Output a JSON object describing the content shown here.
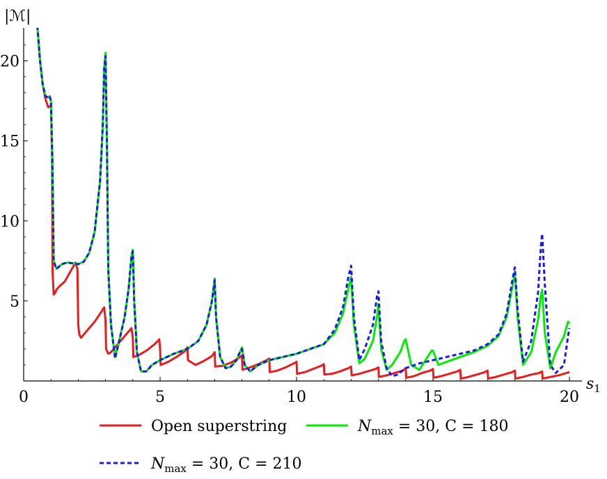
{
  "chart_data": {
    "type": "line",
    "title": "",
    "xlabel": "s",
    "xlabel_sub": "1",
    "ylabel": "|ℳ|",
    "xlim": [
      0,
      20
    ],
    "ylim": [
      0,
      22
    ],
    "xticks": [
      0,
      5,
      10,
      15,
      20
    ],
    "yticks": [
      5,
      10,
      15,
      20
    ],
    "grid": false,
    "legend_position": "bottom",
    "series": [
      {
        "name": "Open superstring",
        "color": "#e81c1c",
        "dash": "solid",
        "x": [
          0.5,
          0.6,
          0.7,
          0.8,
          0.9,
          1.0,
          1.04,
          1.06,
          1.1,
          1.15,
          1.2,
          1.3,
          1.5,
          1.7,
          1.9,
          1.97,
          2.0,
          2.04,
          2.1,
          2.2,
          2.4,
          2.6,
          2.8,
          2.95,
          3.0,
          3.02,
          3.1,
          3.2,
          3.4,
          3.6,
          3.8,
          3.95,
          4.0,
          4.02,
          4.2,
          4.5,
          4.8,
          4.97,
          5.0,
          5.02,
          5.3,
          5.6,
          5.9,
          6.0,
          6.02,
          6.3,
          6.6,
          6.9,
          7.0,
          7.02,
          7.3,
          7.6,
          7.9,
          8.0,
          8.02,
          8.3,
          8.6,
          8.9,
          9.0,
          9.02,
          9.3,
          9.6,
          9.9,
          10.0,
          10.02,
          10.3,
          10.6,
          10.9,
          11.0,
          11.02,
          11.3,
          11.6,
          11.9,
          12.0,
          12.02,
          12.3,
          12.6,
          12.9,
          13.0,
          13.02,
          13.3,
          13.6,
          13.9,
          14.0,
          14.02,
          14.3,
          14.6,
          14.9,
          15.0,
          15.02,
          15.3,
          15.6,
          15.9,
          16.0,
          16.02,
          16.3,
          16.6,
          16.9,
          17.0,
          17.02,
          17.3,
          17.6,
          17.9,
          18.0,
          18.02,
          18.3,
          18.6,
          18.9,
          19.0,
          19.02,
          19.3,
          19.6,
          19.9,
          20.0
        ],
        "y": [
          22.2,
          20.0,
          18.5,
          17.6,
          17.1,
          17.2,
          14.0,
          6.8,
          5.4,
          5.5,
          5.7,
          5.9,
          6.2,
          6.8,
          7.4,
          7.0,
          3.5,
          2.9,
          2.7,
          2.9,
          3.3,
          3.7,
          4.2,
          4.6,
          3.8,
          2.0,
          1.7,
          1.8,
          2.2,
          2.6,
          3.0,
          3.3,
          2.7,
          1.5,
          1.6,
          1.9,
          2.3,
          2.6,
          2.0,
          1.0,
          1.2,
          1.5,
          1.85,
          2.1,
          1.3,
          1.0,
          1.25,
          1.55,
          1.8,
          0.9,
          0.95,
          1.15,
          1.45,
          1.6,
          0.7,
          0.85,
          1.05,
          1.3,
          1.4,
          0.55,
          0.65,
          0.85,
          1.1,
          1.2,
          0.45,
          0.55,
          0.75,
          0.95,
          1.05,
          0.4,
          0.45,
          0.6,
          0.8,
          0.9,
          0.35,
          0.45,
          0.6,
          0.75,
          0.85,
          0.25,
          0.35,
          0.5,
          0.65,
          0.8,
          0.2,
          0.3,
          0.5,
          0.65,
          0.75,
          0.2,
          0.3,
          0.45,
          0.6,
          0.7,
          0.15,
          0.25,
          0.4,
          0.55,
          0.65,
          0.15,
          0.25,
          0.4,
          0.55,
          0.65,
          0.15,
          0.25,
          0.4,
          0.5,
          0.6,
          0.15,
          0.25,
          0.35,
          0.5,
          0.55
        ]
      },
      {
        "name": "N_max = 30, C = 180",
        "color": "#00ee00",
        "dash": "solid",
        "x": [
          0.5,
          0.6,
          0.7,
          0.8,
          0.9,
          0.95,
          1.0,
          1.05,
          1.1,
          1.2,
          1.4,
          1.6,
          1.8,
          2.0,
          2.2,
          2.4,
          2.6,
          2.8,
          2.9,
          2.95,
          3.0,
          3.05,
          3.1,
          3.2,
          3.35,
          3.5,
          3.7,
          3.85,
          3.95,
          4.0,
          4.05,
          4.15,
          4.3,
          4.5,
          4.7,
          5.0,
          5.5,
          6.0,
          6.4,
          6.7,
          6.9,
          7.0,
          7.05,
          7.2,
          7.4,
          7.6,
          7.8,
          7.95,
          8.0,
          8.1,
          8.3,
          8.6,
          9.0,
          9.5,
          10.0,
          10.5,
          11.0,
          11.4,
          11.7,
          11.9,
          12.0,
          12.1,
          12.3,
          12.5,
          12.8,
          12.95,
          13.0,
          13.1,
          13.3,
          13.5,
          13.8,
          13.95,
          14.0,
          14.2,
          14.5,
          14.8,
          14.95,
          15.0,
          15.2,
          15.5,
          16.0,
          16.5,
          17.0,
          17.4,
          17.7,
          17.9,
          18.0,
          18.1,
          18.3,
          18.6,
          18.85,
          18.95,
          19.0,
          19.1,
          19.3,
          19.5,
          19.8,
          19.95,
          20.0
        ],
        "y": [
          22.2,
          20.0,
          18.5,
          17.8,
          17.7,
          17.8,
          17.5,
          14.0,
          7.5,
          7.0,
          7.3,
          7.4,
          7.35,
          7.3,
          7.45,
          8.0,
          9.3,
          12.5,
          16.0,
          19.5,
          20.5,
          15.0,
          7.0,
          3.5,
          1.5,
          2.5,
          4.0,
          5.8,
          7.8,
          8.2,
          5.0,
          1.8,
          0.6,
          0.6,
          1.0,
          1.3,
          1.7,
          2.0,
          2.5,
          3.5,
          5.0,
          6.4,
          4.0,
          1.5,
          0.8,
          0.9,
          1.3,
          1.9,
          2.1,
          1.0,
          0.6,
          1.0,
          1.3,
          1.5,
          1.7,
          2.0,
          2.3,
          3.0,
          4.2,
          5.8,
          6.5,
          3.5,
          1.1,
          1.4,
          2.5,
          4.0,
          4.8,
          2.0,
          0.7,
          1.0,
          1.8,
          2.5,
          2.6,
          1.0,
          0.7,
          1.5,
          1.9,
          1.9,
          1.0,
          1.2,
          1.5,
          1.8,
          2.2,
          2.8,
          4.0,
          5.8,
          6.8,
          4.0,
          1.0,
          1.8,
          3.8,
          5.3,
          5.7,
          3.0,
          0.8,
          1.8,
          2.8,
          3.7,
          3.6
        ]
      },
      {
        "name": "N_max = 30, C = 210",
        "color": "#1a1ae6",
        "dash": "dashed",
        "x": [
          0.5,
          0.6,
          0.7,
          0.8,
          0.9,
          0.95,
          1.0,
          1.05,
          1.1,
          1.2,
          1.4,
          1.6,
          1.8,
          2.0,
          2.2,
          2.4,
          2.6,
          2.8,
          2.9,
          2.95,
          3.0,
          3.05,
          3.1,
          3.2,
          3.35,
          3.5,
          3.7,
          3.85,
          3.95,
          4.0,
          4.05,
          4.15,
          4.3,
          4.5,
          4.7,
          5.0,
          5.5,
          6.0,
          6.4,
          6.7,
          6.9,
          7.0,
          7.05,
          7.2,
          7.4,
          7.6,
          7.8,
          7.95,
          8.0,
          8.1,
          8.3,
          8.6,
          9.0,
          9.5,
          10.0,
          10.5,
          11.0,
          11.4,
          11.7,
          11.9,
          12.0,
          12.1,
          12.3,
          12.5,
          12.8,
          12.95,
          13.0,
          13.1,
          13.3,
          13.5,
          13.7,
          14.0,
          14.5,
          15.0,
          15.5,
          16.0,
          16.5,
          17.0,
          17.4,
          17.7,
          17.9,
          18.0,
          18.1,
          18.3,
          18.6,
          18.85,
          18.95,
          19.0,
          19.1,
          19.3,
          19.5,
          19.8,
          19.95,
          20.0
        ],
        "y": [
          22.2,
          20.0,
          18.5,
          17.8,
          17.7,
          17.8,
          17.5,
          14.0,
          7.5,
          7.0,
          7.3,
          7.4,
          7.35,
          7.3,
          7.45,
          8.0,
          9.3,
          12.5,
          16.0,
          19.5,
          20.3,
          15.0,
          7.0,
          3.5,
          1.4,
          2.5,
          4.0,
          5.8,
          7.8,
          8.1,
          5.0,
          1.8,
          0.6,
          0.6,
          1.0,
          1.3,
          1.7,
          2.0,
          2.5,
          3.5,
          5.0,
          6.3,
          4.0,
          1.5,
          0.8,
          0.9,
          1.3,
          1.9,
          2.0,
          1.0,
          0.6,
          1.0,
          1.3,
          1.5,
          1.7,
          2.0,
          2.3,
          3.2,
          4.6,
          6.5,
          7.2,
          4.0,
          1.3,
          2.0,
          3.5,
          5.3,
          5.6,
          2.5,
          0.8,
          0.3,
          0.4,
          0.8,
          1.1,
          1.3,
          1.5,
          1.7,
          1.9,
          2.3,
          2.9,
          4.2,
          6.2,
          7.1,
          4.5,
          1.2,
          2.5,
          5.5,
          8.3,
          9.2,
          6.0,
          1.0,
          0.5,
          1.0,
          2.8,
          3.3
        ]
      }
    ]
  },
  "legend": {
    "items": [
      {
        "label": "Open superstring",
        "color": "#e81c1c",
        "dash": "solid"
      },
      {
        "label_main": "N",
        "label_sub": "max",
        "label_rest": " = 30, C = 180",
        "color": "#00ee00",
        "dash": "solid"
      },
      {
        "label_main": "N",
        "label_sub": "max",
        "label_rest": " = 30, C = 210",
        "color": "#1a1ae6",
        "dash": "dashed"
      }
    ]
  }
}
